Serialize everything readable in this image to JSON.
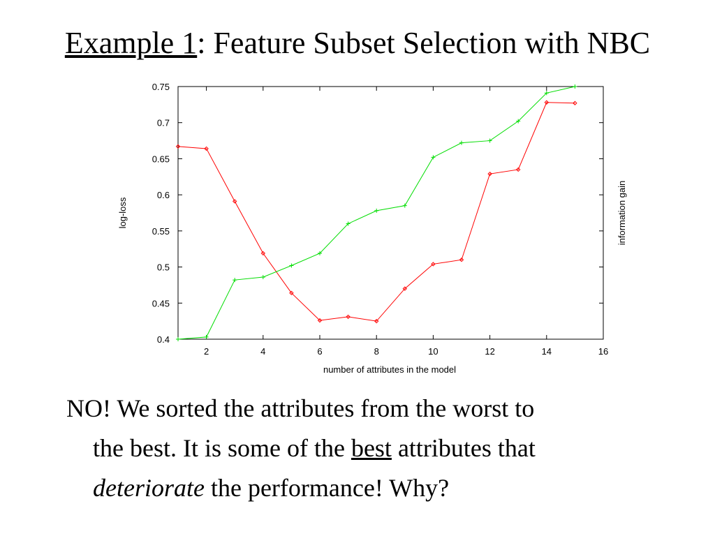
{
  "slide": {
    "title_underlined": "Example 1",
    "title_rest": ": Feature Subset Selection with NBC",
    "body": {
      "line1": "NO! We sorted the attributes from the worst to",
      "line2_a": "the best. It is some of the ",
      "line2_b": "best",
      "line2_c": " attributes that",
      "line3_a": "deteriorate",
      "line3_b": " the performance! Why?"
    }
  },
  "colors": {
    "log_loss": "#ff0000",
    "information_gain": "#00dd00",
    "grid": "#000000"
  },
  "chart_data": {
    "type": "line",
    "title": "",
    "xlabel": "number of attributes in the model",
    "ylabel": "log-loss",
    "y2label": "information gain",
    "xlim": [
      1,
      16
    ],
    "ylim": [
      0.4,
      0.75
    ],
    "xticks": [
      2,
      4,
      6,
      8,
      10,
      12,
      14,
      16
    ],
    "yticks": [
      0.4,
      0.45,
      0.5,
      0.55,
      0.6,
      0.65,
      0.7,
      0.75
    ],
    "ytick_labels": [
      "0.4",
      "0.45",
      "0.5",
      "0.55",
      "0.6",
      "0.65",
      "0.7",
      "0.75"
    ],
    "grid": false,
    "legend": "none",
    "series": [
      {
        "key": "log_loss",
        "marker": "diamond",
        "x": [
          1,
          2,
          3,
          4,
          5,
          6,
          7,
          8,
          9,
          10,
          11,
          12,
          13,
          14,
          15
        ],
        "y": [
          0.667,
          0.664,
          0.591,
          0.519,
          0.464,
          0.426,
          0.431,
          0.425,
          0.47,
          0.504,
          0.51,
          0.629,
          0.635,
          0.728,
          0.727
        ]
      },
      {
        "key": "information_gain",
        "marker": "plus",
        "x": [
          1,
          2,
          3,
          4,
          5,
          6,
          7,
          8,
          9,
          10,
          11,
          12,
          13,
          14,
          15
        ],
        "y": [
          0.4,
          0.403,
          0.482,
          0.486,
          0.502,
          0.519,
          0.56,
          0.578,
          0.585,
          0.652,
          0.672,
          0.675,
          0.702,
          0.741,
          0.75
        ]
      }
    ]
  }
}
